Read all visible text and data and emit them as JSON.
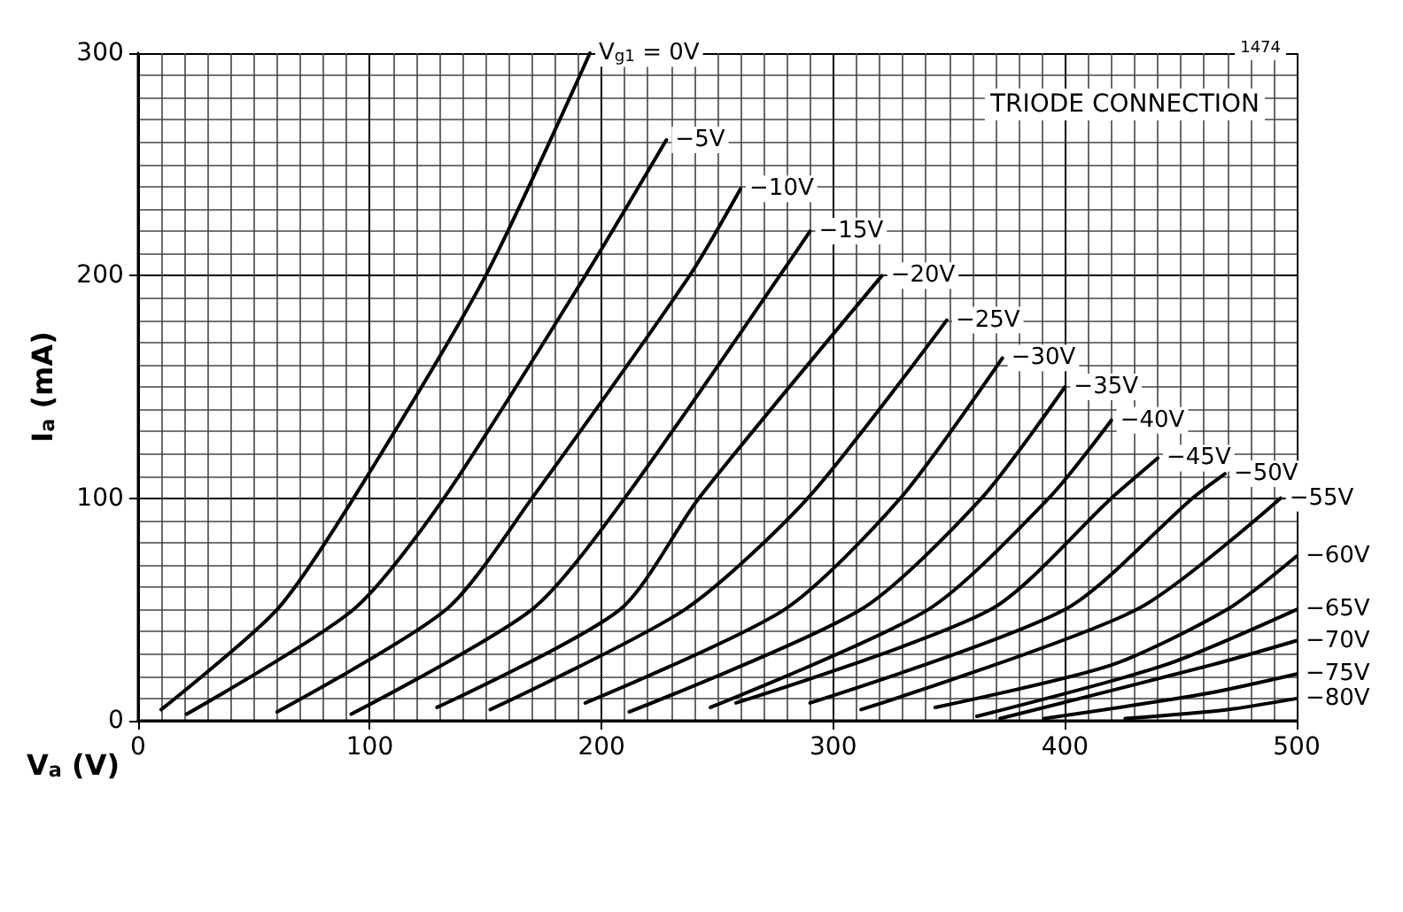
{
  "chart_data": {
    "type": "line",
    "xlabel": "V$_{a}$ (V)",
    "ylabel": "I$_{a}$ (mA)",
    "xlim": [
      0,
      500
    ],
    "ylim": [
      0,
      300
    ],
    "xticks": [
      0,
      100,
      200,
      300,
      400,
      500
    ],
    "yticks": [
      0,
      100,
      200,
      300
    ],
    "grid": true,
    "legend": false,
    "marker": "none",
    "line_style": "solid",
    "annotations": [
      "TRIODE CONNECTION",
      "1474"
    ],
    "series": [
      {
        "name": "V$_{g1}$ = 0V",
        "color": "#000000",
        "x": [
          10,
          60,
          93,
          150,
          195
        ],
        "values": [
          5,
          50,
          100,
          200,
          300
        ]
      },
      {
        "name": "−5V",
        "color": "#000000",
        "x": [
          21,
          93,
          132,
          193,
          228
        ],
        "values": [
          3,
          50,
          100,
          200,
          261
        ]
      },
      {
        "name": "−10V",
        "color": "#000000",
        "x": [
          60,
          133,
          170,
          238,
          260
        ],
        "values": [
          4,
          50,
          100,
          200,
          239
        ]
      },
      {
        "name": "−15V",
        "color": "#000000",
        "x": [
          92,
          170,
          210,
          290
        ],
        "values": [
          3,
          50,
          100,
          220
        ]
      },
      {
        "name": "−20V",
        "color": "#000000",
        "x": [
          129,
          208,
          242,
          321
        ],
        "values": [
          6,
          50,
          100,
          200
        ]
      },
      {
        "name": "−25V",
        "color": "#000000",
        "x": [
          152,
          236,
          289,
          349
        ],
        "values": [
          5,
          50,
          100,
          180
        ]
      },
      {
        "name": "−30V",
        "color": "#000000",
        "x": [
          193,
          279,
          329,
          373
        ],
        "values": [
          8,
          50,
          100,
          163
        ]
      },
      {
        "name": "−35V",
        "color": "#000000",
        "x": [
          212,
          312,
          364,
          400
        ],
        "values": [
          4,
          50,
          100,
          150
        ]
      },
      {
        "name": "−40V",
        "color": "#000000",
        "x": [
          247,
          341,
          393,
          420
        ],
        "values": [
          6,
          50,
          100,
          135
        ]
      },
      {
        "name": "−45V",
        "color": "#000000",
        "x": [
          258,
          368,
          420,
          440
        ],
        "values": [
          8,
          50,
          100,
          118
        ]
      },
      {
        "name": "−50V",
        "color": "#000000",
        "x": [
          290,
          400,
          455,
          469
        ],
        "values": [
          8,
          50,
          100,
          111
        ]
      },
      {
        "name": "−55V",
        "color": "#000000",
        "x": [
          312,
          431,
          493
        ],
        "values": [
          5,
          50,
          100
        ]
      },
      {
        "name": "−60V",
        "color": "#000000",
        "x": [
          344,
          420,
          470,
          500
        ],
        "values": [
          6,
          25,
          50,
          74
        ]
      },
      {
        "name": "−65V",
        "color": "#000000",
        "x": [
          362,
          443,
          500
        ],
        "values": [
          2,
          25,
          50
        ]
      },
      {
        "name": "−70V",
        "color": "#000000",
        "x": [
          372,
          463,
          500
        ],
        "values": [
          1,
          25,
          36
        ]
      },
      {
        "name": "−75V",
        "color": "#000000",
        "x": [
          391,
          460,
          500
        ],
        "values": [
          1,
          12,
          21
        ]
      },
      {
        "name": "−80V",
        "color": "#000000",
        "x": [
          426,
          470,
          500
        ],
        "values": [
          1,
          5,
          10
        ]
      }
    ]
  }
}
